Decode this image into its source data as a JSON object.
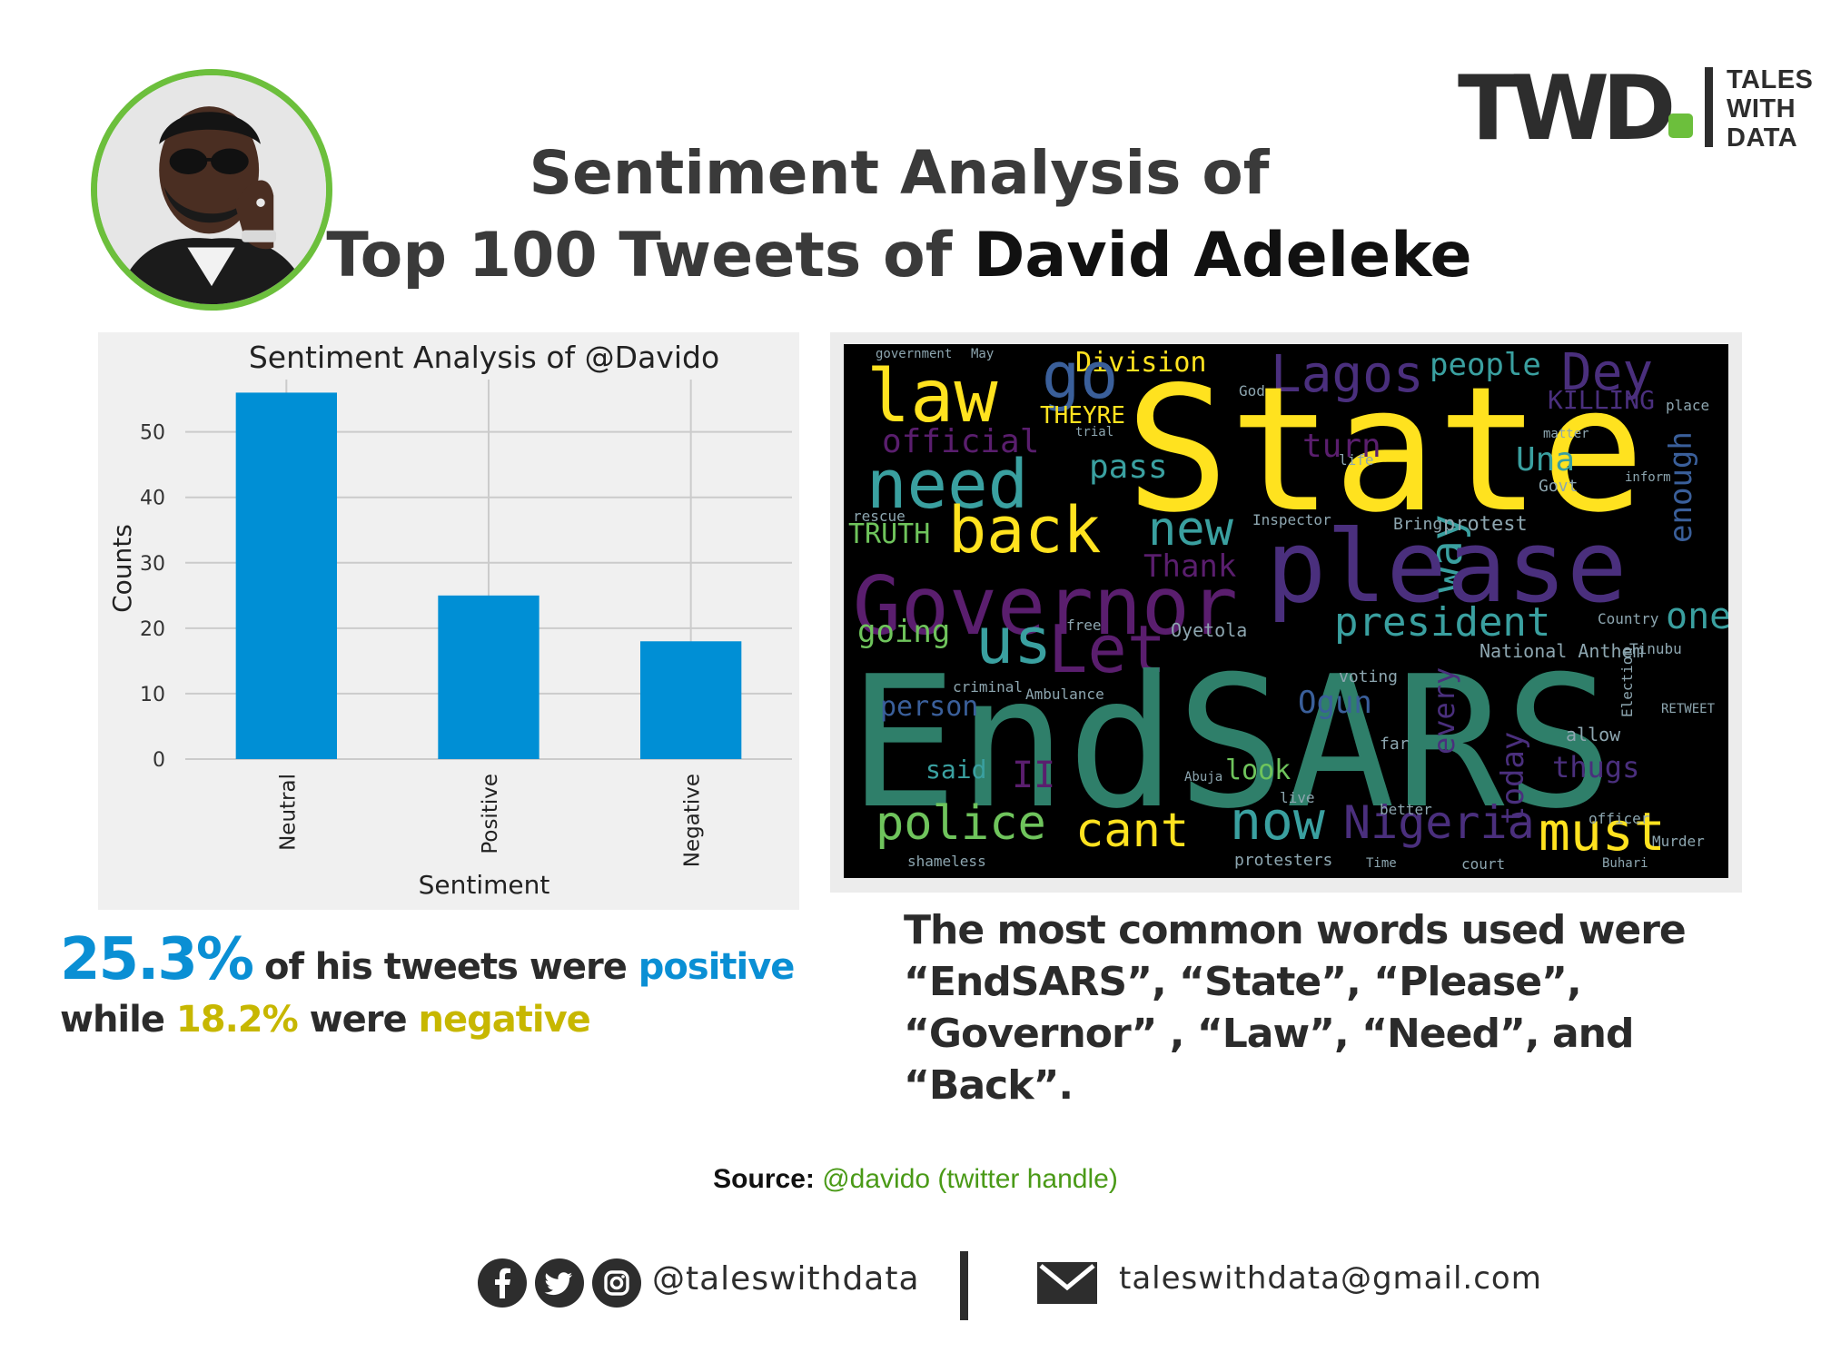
{
  "brand": {
    "mark": "TWD",
    "text_lines": [
      "TALES",
      "WITH",
      "DATA"
    ],
    "accent": "#6cbf3c"
  },
  "title": {
    "line1": "Sentiment Analysis of",
    "line2_prefix": "Top 100 Tweets of",
    "line2_name": "David Adeleke"
  },
  "chart_data": {
    "type": "bar",
    "title": "Sentiment Analysis of @Davido",
    "xlabel": "Sentiment",
    "ylabel": "Counts",
    "categories": [
      "Neutral",
      "Positive",
      "Negative"
    ],
    "values": [
      56,
      25,
      18
    ],
    "ylim": [
      0,
      58
    ],
    "yticks": [
      0,
      10,
      20,
      30,
      40,
      50
    ],
    "grid": true,
    "bar_color": "#008fd5"
  },
  "wordcloud": {
    "words": [
      "government",
      "May",
      "Division",
      "Lagos",
      "people",
      "Dey",
      "law",
      "go",
      "State",
      "KILLING",
      "THEYRE",
      "official",
      "need",
      "pass",
      "turn",
      "Una",
      "way",
      "back",
      "please",
      "TRUTH",
      "new",
      "protest",
      "enough",
      "Thank",
      "Governor",
      "president",
      "one",
      "going",
      "us",
      "Let",
      "free",
      "Oyetola",
      "National Anthem",
      "Tinubu",
      "EndSARS",
      "Ogun",
      "person",
      "criminal",
      "Ambulance",
      "said",
      "II",
      "look",
      "thugs",
      "allow",
      "police",
      "cant",
      "now",
      "Nigeria",
      "must",
      "today",
      "every",
      "protesters",
      "shameless",
      "court",
      "Murder",
      "God",
      "trial",
      "life",
      "Govt",
      "matter",
      "inform",
      "place",
      "Bring",
      "Inspector",
      "rescue",
      "voting",
      "Country",
      "RETWEET",
      "officer",
      "live",
      "better",
      "Time",
      "Buhari",
      "far",
      "Abuja",
      "Election"
    ]
  },
  "stats": {
    "positive_pct": "25.3%",
    "sentence_1": "of his tweets were",
    "positive_word": "positive",
    "while": "while",
    "negative_pct": "18.2%",
    "were": "were",
    "negative_word": "negative"
  },
  "common_words_text": "The most common words used were “EndSARS”, “State”, “Please”, “Governor” , “Law”, “Need”, and  “Back”.",
  "source": {
    "label": "Source:",
    "value": "@davido (twitter handle)"
  },
  "footer": {
    "handle": "@taleswithdata",
    "email": "taleswithdata@gmail.com"
  }
}
